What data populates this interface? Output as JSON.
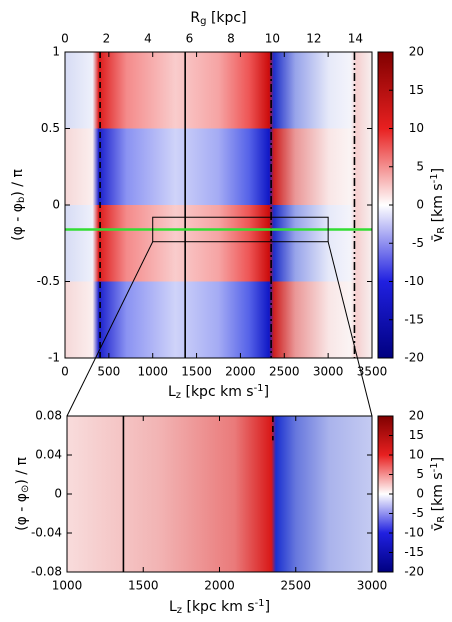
{
  "chart_data": [
    {
      "type": "heatmap",
      "x2label": [
        {
          "text": "R"
        },
        {
          "sub": "g"
        },
        {
          "text": " [kpc]"
        }
      ],
      "xlabel": [
        {
          "text": "L"
        },
        {
          "sub": "z"
        },
        {
          "text": " [kpc km s"
        },
        {
          "sup": "-1"
        },
        {
          "text": "]"
        }
      ],
      "ylabel": [
        {
          "text": "(φ - φ"
        },
        {
          "sub": "b"
        },
        {
          "text": ") / π"
        }
      ],
      "colorbar_label": [
        {
          "text": "v̄"
        },
        {
          "sub": "R"
        },
        {
          "text": " [km s"
        },
        {
          "sup": "-1"
        },
        {
          "text": "]"
        }
      ],
      "xlim": [
        0,
        3500
      ],
      "xticks": [
        0,
        500,
        1000,
        1500,
        2000,
        2500,
        3000,
        3500
      ],
      "x2lim": [
        0,
        14.8
      ],
      "x2ticks": [
        0,
        2,
        4,
        6,
        8,
        10,
        12,
        14
      ],
      "ylim": [
        -1,
        1
      ],
      "yticks": [
        -1,
        -0.5,
        0,
        0.5,
        1
      ],
      "clim": [
        -20,
        20
      ],
      "cticks": [
        -20,
        -15,
        -10,
        -5,
        0,
        5,
        10,
        15,
        20
      ],
      "vlines": [
        {
          "x": 400,
          "style": "dashed"
        },
        {
          "x": 1370,
          "style": "solid"
        },
        {
          "x": 2350,
          "style": "dash-dot"
        },
        {
          "x": 3300,
          "style": "dash-dot-dot"
        }
      ],
      "hline": {
        "y": -0.16,
        "color": "#33dd33"
      },
      "zoom_box": {
        "xlim": [
          1000,
          3000
        ],
        "ylim": [
          -0.24,
          -0.08
        ]
      }
    },
    {
      "type": "heatmap",
      "xlabel": [
        {
          "text": "L"
        },
        {
          "sub": "z"
        },
        {
          "text": " [kpc km s"
        },
        {
          "sup": "-1"
        },
        {
          "text": "]"
        }
      ],
      "ylabel": [
        {
          "text": "(φ - φ"
        },
        {
          "sub": "⊙"
        },
        {
          "text": ") / π"
        }
      ],
      "colorbar_label": [
        {
          "text": "v̄"
        },
        {
          "sub": "R"
        },
        {
          "text": " [km s"
        },
        {
          "sup": "-1"
        },
        {
          "text": "]"
        }
      ],
      "xlim": [
        1000,
        3000
      ],
      "xticks": [
        1000,
        1500,
        2000,
        2500,
        3000
      ],
      "ylim": [
        -0.08,
        0.08
      ],
      "yticks": [
        -0.08,
        -0.04,
        0,
        0.04,
        0.08
      ],
      "clim": [
        -20,
        20
      ],
      "cticks": [
        -20,
        -15,
        -10,
        -5,
        0,
        5,
        10,
        15,
        20
      ],
      "vlines": [
        {
          "x": 1370,
          "style": "solid"
        },
        {
          "x": 2350,
          "style": "dashed",
          "ylim": [
            0.055,
            0.08
          ]
        }
      ]
    }
  ]
}
